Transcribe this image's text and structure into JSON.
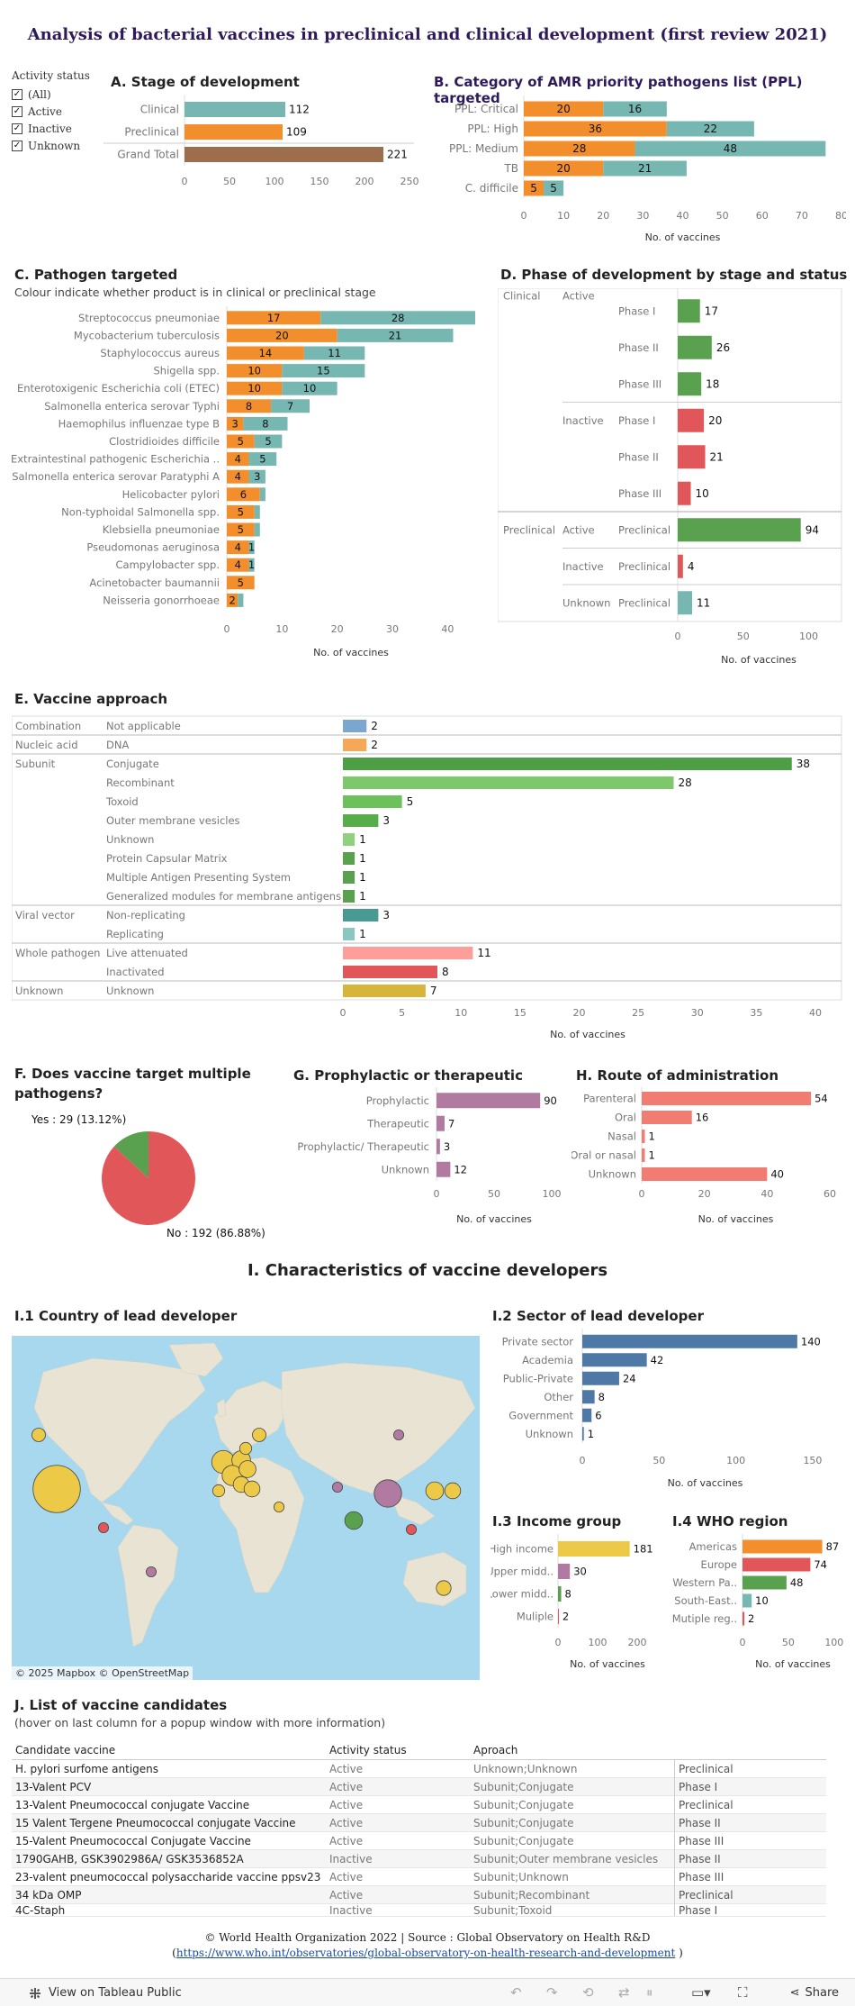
{
  "page": {
    "title": "Analysis of bacterial vaccines in preclinical and clinical development (first review 2021)",
    "section_i_title": "I. Characteristics of vaccine developers",
    "footer_line1": "© World Health Organization 2022 | Source : Global Observatory on Health R&D",
    "footer_link": "https://www.who.int/observatories/global-observatory-on-health-research-and-development",
    "footer_paren_open": "(",
    "footer_paren_close": " )"
  },
  "filter": {
    "title": "Activity status",
    "items": [
      {
        "label": "(All)",
        "checked": true
      },
      {
        "label": "Active",
        "checked": true
      },
      {
        "label": "Inactive",
        "checked": true
      },
      {
        "label": "Unknown",
        "checked": true
      }
    ]
  },
  "colors": {
    "clinical": "#76b7b2",
    "preclinical": "#f28e2b",
    "grand_total": "#9c6e4e",
    "green": "#59a14f",
    "red": "#e15759",
    "teal": "#76b7b2",
    "purple": "#b07aa1",
    "blue": "#4e79a7",
    "yellow": "#edc948",
    "pink": "#ff9d9a",
    "salmon": "#f17c72",
    "title_purple": "#2e1a5b"
  },
  "chart_a": {
    "title": "A. Stage of development",
    "chart_data": {
      "type": "bar",
      "categories": [
        "Clinical",
        "Preclinical",
        "Grand Total"
      ],
      "values": [
        112,
        109,
        221
      ],
      "xlim": [
        0,
        250
      ],
      "xticks": [
        0,
        50,
        100,
        150,
        200,
        250
      ]
    }
  },
  "chart_b": {
    "title": "B. Category of AMR priority pathogens list (PPL) targeted",
    "xlabel": "No. of vaccines",
    "chart_data": {
      "type": "bar",
      "stacked": true,
      "categories": [
        "PPL: Critical",
        "PPL: High",
        "PPL: Medium",
        "TB",
        "C. difficile"
      ],
      "series": [
        {
          "name": "Preclinical",
          "values": [
            20,
            36,
            28,
            20,
            5
          ]
        },
        {
          "name": "Clinical",
          "values": [
            16,
            22,
            48,
            21,
            5
          ]
        }
      ],
      "xlim": [
        0,
        80
      ],
      "xticks": [
        0,
        10,
        20,
        30,
        40,
        50,
        60,
        70,
        80
      ]
    }
  },
  "chart_c": {
    "title": "C. Pathogen targeted",
    "subtitle": "Colour indicate whether product is in clinical or preclinical stage",
    "xlabel": "No. of vaccines",
    "chart_data": {
      "type": "bar",
      "stacked": true,
      "categories": [
        "Streptococcus pneumoniae",
        "Mycobacterium tuberculosis",
        "Staphylococcus aureus",
        "Shigella spp.",
        "Enterotoxigenic Escherichia coli (ETEC)",
        "Salmonella enterica serovar Typhi",
        "Haemophilus influenzae type B",
        "Clostridioides difficile",
        "Extraintestinal pathogenic Escherichia ..",
        "Salmonella enterica serovar Paratyphi A",
        "Helicobacter pylori",
        "Non-typhoidal Salmonella spp.",
        "Klebsiella pneumoniae",
        "Pseudomonas aeruginosa",
        "Campylobacter spp.",
        "Acinetobacter baumannii",
        "Neisseria gonorrhoeae"
      ],
      "series": [
        {
          "name": "Preclinical",
          "values": [
            17,
            20,
            14,
            10,
            10,
            8,
            3,
            5,
            4,
            4,
            6,
            5,
            5,
            4,
            4,
            5,
            2
          ]
        },
        {
          "name": "Clinical",
          "values": [
            28,
            21,
            11,
            15,
            10,
            7,
            8,
            5,
            5,
            3,
            1,
            1,
            1,
            1,
            1,
            0,
            1
          ]
        }
      ],
      "labels_preclinical": [
        "17",
        "20",
        "14",
        "10",
        "10",
        "8",
        "3",
        "5",
        "4",
        "4",
        "6",
        "5",
        "5",
        "4",
        "4",
        "5",
        "2"
      ],
      "labels_clinical": [
        "28",
        "21",
        "11",
        "15",
        "10",
        "7",
        "8",
        "5",
        "5",
        "3",
        "",
        "",
        "",
        "1",
        "1",
        "",
        ""
      ],
      "xlim": [
        0,
        45
      ],
      "xticks": [
        0,
        10,
        20,
        30,
        40
      ]
    }
  },
  "chart_d": {
    "title": "D. Phase of development by stage and status",
    "xlabel": "No. of vaccines",
    "chart_data": {
      "type": "bar",
      "rows": [
        {
          "stage": "Clinical",
          "status": "Active",
          "phase": "Phase I",
          "value": 17,
          "color": "green"
        },
        {
          "stage": "",
          "status": "",
          "phase": "Phase II",
          "value": 26,
          "color": "green"
        },
        {
          "stage": "",
          "status": "",
          "phase": "Phase III",
          "value": 18,
          "color": "green"
        },
        {
          "stage": "",
          "status": "Inactive",
          "phase": "Phase I",
          "value": 20,
          "color": "red"
        },
        {
          "stage": "",
          "status": "",
          "phase": "Phase II",
          "value": 21,
          "color": "red"
        },
        {
          "stage": "",
          "status": "",
          "phase": "Phase III",
          "value": 10,
          "color": "red"
        },
        {
          "stage": "Preclinical",
          "status": "Active",
          "phase": "Preclinical",
          "value": 94,
          "color": "green"
        },
        {
          "stage": "",
          "status": "Inactive",
          "phase": "Preclinical",
          "value": 4,
          "color": "red"
        },
        {
          "stage": "",
          "status": "Unknown",
          "phase": "Preclinical",
          "value": 11,
          "color": "teal"
        }
      ],
      "xlim": [
        0,
        110
      ],
      "xticks": [
        0,
        50,
        100
      ]
    }
  },
  "chart_e": {
    "title": "E. Vaccine approach",
    "xlabel": "No. of vaccines",
    "chart_data": {
      "type": "bar",
      "rows": [
        {
          "group": "Combination",
          "item": "Not applicable",
          "value": 2,
          "color": "#7aa6cf"
        },
        {
          "group": "Nucleic acid",
          "item": "DNA",
          "value": 2,
          "color": "#f5a857"
        },
        {
          "group": "Subunit",
          "item": "Conjugate",
          "value": 38,
          "color": "#4e9e45"
        },
        {
          "group": "",
          "item": "Recombinant",
          "value": 28,
          "color": "#7cc86b"
        },
        {
          "group": "",
          "item": "Toxoid",
          "value": 5,
          "color": "#6cc15a"
        },
        {
          "group": "",
          "item": "Outer membrane vesicles",
          "value": 3,
          "color": "#56ad4a"
        },
        {
          "group": "",
          "item": "Unknown",
          "value": 1,
          "color": "#8fd17f"
        },
        {
          "group": "",
          "item": "Protein Capsular Matrix",
          "value": 1,
          "color": "#59a14f"
        },
        {
          "group": "",
          "item": "Multiple Antigen Presenting System",
          "value": 1,
          "color": "#59a14f"
        },
        {
          "group": "",
          "item": "Generalized modules for membrane antigens",
          "value": 1,
          "color": "#59a14f"
        },
        {
          "group": "Viral vector",
          "item": "Non-replicating",
          "value": 3,
          "color": "#4a9a94"
        },
        {
          "group": "",
          "item": "Replicating",
          "value": 1,
          "color": "#8cc6c1"
        },
        {
          "group": "Whole pathogen",
          "item": "Live attenuated",
          "value": 11,
          "color": "#ff9d9a"
        },
        {
          "group": "",
          "item": "Inactivated",
          "value": 8,
          "color": "#e15759"
        },
        {
          "group": "Unknown",
          "item": "Unknown",
          "value": 7,
          "color": "#d9b43a"
        }
      ],
      "xlim": [
        0,
        40
      ],
      "xticks": [
        0,
        5,
        10,
        15,
        20,
        25,
        30,
        35,
        40
      ]
    }
  },
  "chart_f": {
    "title_line1": "F. Does vaccine target multiple",
    "title_line2": "pathogens?",
    "chart_data": {
      "type": "pie",
      "slices": [
        {
          "name": "Yes",
          "value": 29,
          "label": "Yes : 29 (13.12%)"
        },
        {
          "name": "No",
          "value": 192,
          "label": "No : 192 (86.88%)"
        }
      ]
    }
  },
  "chart_g": {
    "title": "G. Prophylactic or therapeutic",
    "xlabel": "No. of vaccines",
    "chart_data": {
      "type": "bar",
      "categories": [
        "Prophylactic",
        "Therapeutic",
        "Prophylactic/ Therapeutic",
        "Unknown"
      ],
      "values": [
        90,
        7,
        3,
        12
      ],
      "xlim": [
        0,
        100
      ],
      "xticks": [
        0,
        50,
        100
      ]
    }
  },
  "chart_h": {
    "title": "H. Route of administration",
    "xlabel": "No. of vaccines",
    "chart_data": {
      "type": "bar",
      "categories": [
        "Parenteral",
        "Oral",
        "Nasal",
        "Oral or nasal",
        "Unknown"
      ],
      "values": [
        54,
        16,
        1,
        1,
        40
      ],
      "xlim": [
        0,
        60
      ],
      "xticks": [
        0,
        20,
        40,
        60
      ]
    }
  },
  "chart_i1": {
    "title": "I.1 Country of lead developer",
    "credit": "© 2025 Mapbox  © OpenStreetMap"
  },
  "chart_i2": {
    "title": "I.2 Sector of lead developer",
    "xlabel": "No. of vaccines",
    "chart_data": {
      "type": "bar",
      "categories": [
        "Private sector",
        "Academia",
        "Public-Private",
        "Other",
        "Government",
        "Unknown"
      ],
      "values": [
        140,
        42,
        24,
        8,
        6,
        1
      ],
      "xlim": [
        0,
        160
      ],
      "xticks": [
        0,
        50,
        100,
        150
      ]
    }
  },
  "chart_i3": {
    "title": "I.3 Income group",
    "xlabel": "No. of vaccines",
    "chart_data": {
      "type": "bar",
      "categories": [
        "High income",
        "Upper midd..",
        "Lower midd..",
        "Muliple"
      ],
      "values": [
        181,
        30,
        8,
        2
      ],
      "xlim": [
        0,
        250
      ],
      "xticks": [
        0,
        100,
        200
      ]
    }
  },
  "chart_i4": {
    "title": "I.4 WHO region",
    "xlabel": "No. of vaccines",
    "chart_data": {
      "type": "bar",
      "categories": [
        "Americas",
        "Europe",
        "Western Pa..",
        "South-East..",
        "Mutiple reg.."
      ],
      "values": [
        87,
        74,
        48,
        10,
        2
      ],
      "xlim": [
        0,
        110
      ],
      "xticks": [
        0,
        50,
        100
      ]
    }
  },
  "table_j": {
    "title": "J. List of vaccine candidates",
    "subtitle": "(hover on last column for a popup window with more information)",
    "headers": [
      "Candidate vaccine",
      "Activity status",
      "Aproach",
      ""
    ],
    "rows": [
      [
        "H. pylori surfome antigens",
        "Active",
        "Unknown;Unknown",
        "Preclinical"
      ],
      [
        "13-Valent PCV",
        "Active",
        "Subunit;Conjugate",
        "Phase I"
      ],
      [
        "13-Valent Pneumococcal conjugate Vaccine",
        "Active",
        "Subunit;Conjugate",
        "Preclinical"
      ],
      [
        "15 Valent Tergene Pneumococcal conjugate Vaccine",
        "Active",
        "Subunit;Conjugate",
        "Phase II"
      ],
      [
        "15-Valent Pneumococcal Conjugate Vaccine",
        "Active",
        "Subunit;Conjugate",
        "Phase III"
      ],
      [
        "1790GAHB, GSK3902986A/ GSK3536852A",
        "Inactive",
        "Subunit;Outer membrane vesicles",
        "Phase II"
      ],
      [
        "23-valent pneumococcal polysaccharide vaccine ppsv23",
        "Active",
        "Subunit;Unknown",
        "Phase III"
      ],
      [
        "34 kDa OMP",
        "Active",
        "Subunit;Recombinant",
        "Preclinical"
      ],
      [
        "4C-Staph",
        "Inactive",
        "Subunit;Toxoid",
        "Phase I"
      ]
    ]
  },
  "map": {
    "bubbles": [
      {
        "name": "USA",
        "value": 80,
        "color": "yellow"
      },
      {
        "name": "Canada",
        "value": 3,
        "color": "yellow"
      },
      {
        "name": "Mexico",
        "value": 1,
        "color": "red"
      },
      {
        "name": "Brazil",
        "value": 1,
        "color": "purple"
      },
      {
        "name": "UK",
        "value": 14,
        "color": "yellow"
      },
      {
        "name": "Netherlands",
        "value": 8,
        "color": "yellow"
      },
      {
        "name": "France",
        "value": 10,
        "color": "yellow"
      },
      {
        "name": "Germany",
        "value": 6,
        "color": "yellow"
      },
      {
        "name": "Switzerland",
        "value": 5,
        "color": "yellow"
      },
      {
        "name": "Italy",
        "value": 5,
        "color": "yellow"
      },
      {
        "name": "Sweden",
        "value": 3,
        "color": "yellow"
      },
      {
        "name": "Denmark",
        "value": 2,
        "color": "yellow"
      },
      {
        "name": "Spain",
        "value": 2,
        "color": "yellow"
      },
      {
        "name": "Russia",
        "value": 1,
        "color": "purple"
      },
      {
        "name": "Iran",
        "value": 1,
        "color": "purple"
      },
      {
        "name": "India",
        "value": 7,
        "color": "green"
      },
      {
        "name": "China",
        "value": 22,
        "color": "purple"
      },
      {
        "name": "Korea",
        "value": 7,
        "color": "yellow"
      },
      {
        "name": "Japan",
        "value": 5,
        "color": "yellow"
      },
      {
        "name": "Philippines",
        "value": 1,
        "color": "red"
      },
      {
        "name": "Australia",
        "value": 4,
        "color": "yellow"
      },
      {
        "name": "Egypt",
        "value": 1,
        "color": "yellow"
      }
    ]
  }
}
